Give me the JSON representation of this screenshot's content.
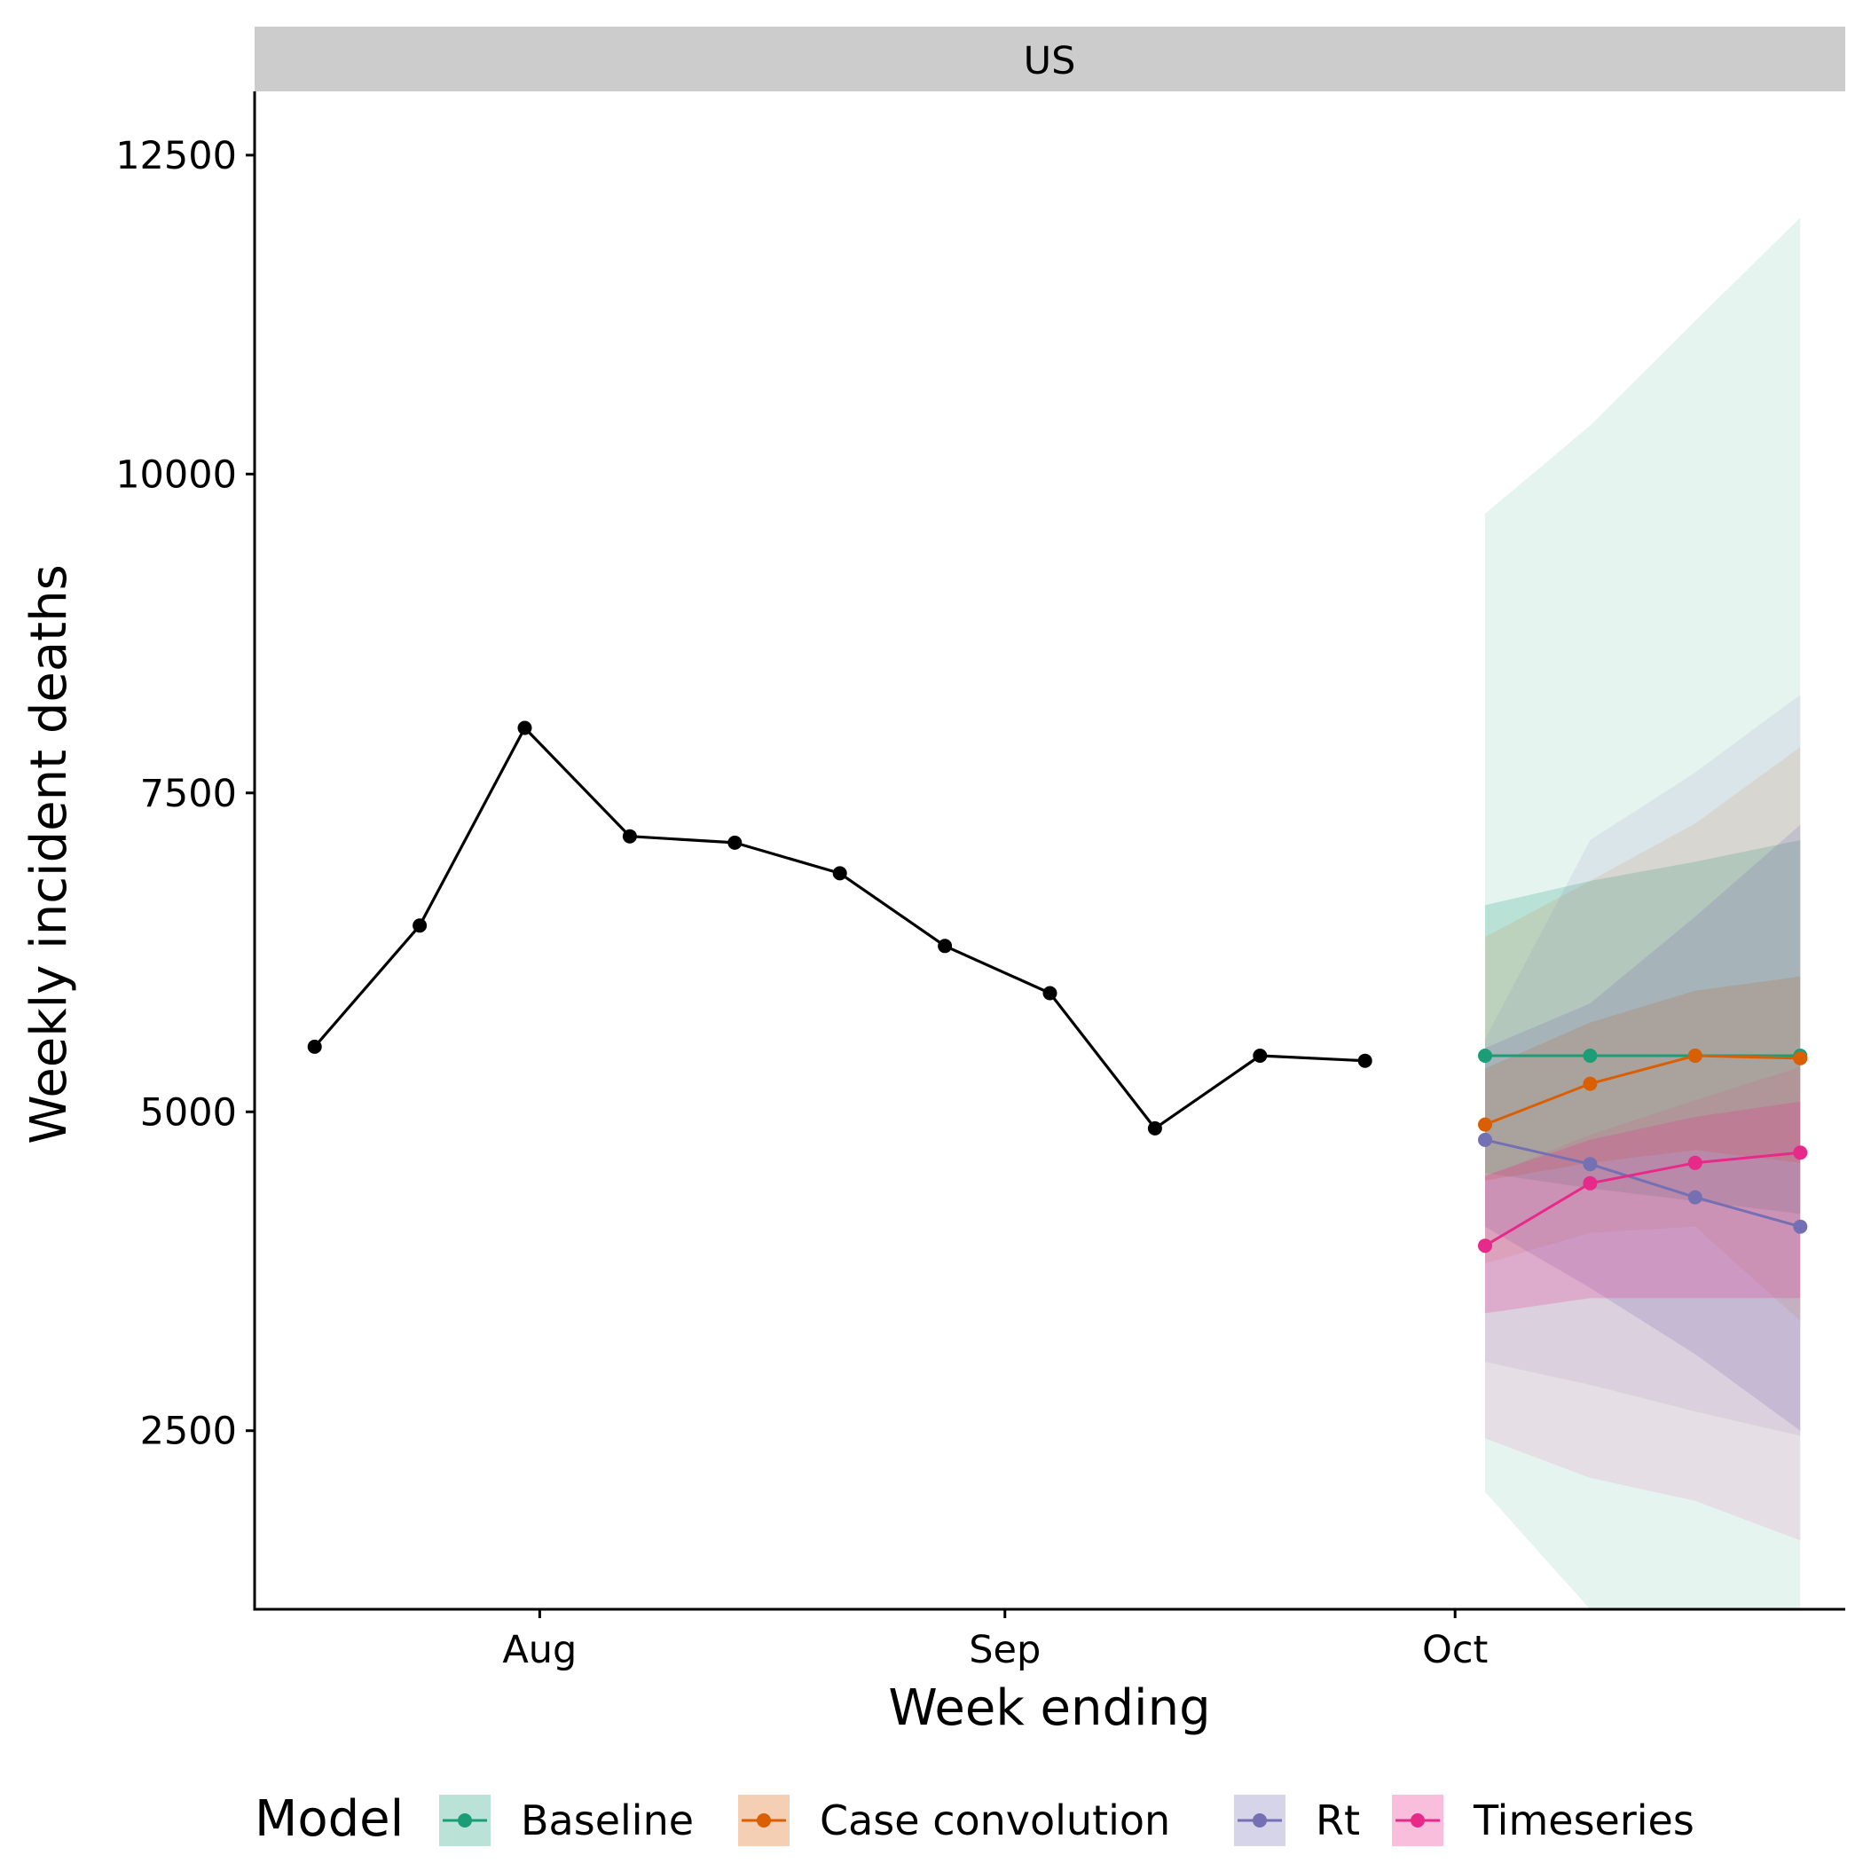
{
  "chart_data": {
    "type": "line",
    "panel_title": "US",
    "xlabel": "Week ending",
    "ylabel": "Weekly incident deaths",
    "x_ticks": [
      {
        "label": "Aug",
        "date": "2021-08-01"
      },
      {
        "label": "Sep",
        "date": "2021-09-01"
      },
      {
        "label": "Oct",
        "date": "2021-10-01"
      }
    ],
    "y_ticks": [
      2500,
      5000,
      7500,
      10000,
      12500
    ],
    "xlim": [
      "2021-07-13",
      "2021-10-27"
    ],
    "ylim": [
      1100,
      13000
    ],
    "grid": false,
    "legend": {
      "title": "Model",
      "position": "bottom"
    },
    "observed": {
      "color": "#000000",
      "points": [
        {
          "x": "2021-07-17",
          "y": 5510
        },
        {
          "x": "2021-07-24",
          "y": 6460
        },
        {
          "x": "2021-07-31",
          "y": 8010
        },
        {
          "x": "2021-08-07",
          "y": 7160
        },
        {
          "x": "2021-08-14",
          "y": 7110
        },
        {
          "x": "2021-08-21",
          "y": 6870
        },
        {
          "x": "2021-08-28",
          "y": 6300
        },
        {
          "x": "2021-09-04",
          "y": 5930
        },
        {
          "x": "2021-09-11",
          "y": 4870
        },
        {
          "x": "2021-09-18",
          "y": 5440
        },
        {
          "x": "2021-09-25",
          "y": 5400
        }
      ]
    },
    "forecast_dates": [
      "2021-10-03",
      "2021-10-10",
      "2021-10-17",
      "2021-10-24"
    ],
    "series": [
      {
        "name": "Baseline",
        "color": "#1b9e77",
        "median": [
          5440,
          5440,
          5440,
          5440
        ],
        "bands": [
          {
            "lower": [
              2020,
              1100,
              1100,
              1100
            ],
            "upper": [
              9690,
              10380,
              11200,
              12010
            ],
            "opacity": 0.11
          },
          {
            "lower": [
              4520,
              4400,
              4300,
              4200
            ],
            "upper": [
              6620,
              6810,
              6960,
              7130
            ],
            "opacity": 0.22
          }
        ]
      },
      {
        "name": "Case convolution",
        "color": "#d95f02",
        "median": [
          4900,
          5220,
          5440,
          5420
        ],
        "bands": [
          {
            "lower": [
              3810,
              4050,
              4100,
              3360
            ],
            "upper": [
              6370,
              6810,
              7260,
              7860
            ],
            "opacity": 0.11
          },
          {
            "lower": [
              4460,
              4600,
              4700,
              4600
            ],
            "upper": [
              5340,
              5700,
              5950,
              6060
            ],
            "opacity": 0.22
          }
        ]
      },
      {
        "name": "Rt",
        "color": "#7570b3",
        "median": [
          4780,
          4590,
          4330,
          4100
        ],
        "bands": [
          {
            "lower": [
              3040,
              2860,
              2650,
              2460
            ],
            "upper": [
              5570,
              7130,
              7660,
              8270
            ],
            "opacity": 0.11
          },
          {
            "lower": [
              4100,
              3620,
              3100,
              2500
            ],
            "upper": [
              5500,
              5850,
              6530,
              7250
            ],
            "opacity": 0.22
          }
        ]
      },
      {
        "name": "Timeseries",
        "color": "#e7298a",
        "median": [
          3950,
          4440,
          4600,
          4680
        ],
        "bands": [
          {
            "lower": [
              2440,
              2130,
              1950,
              1640
            ],
            "upper": [
              4490,
              4820,
              5090,
              5350
            ],
            "opacity": 0.11
          },
          {
            "lower": [
              3420,
              3540,
              3540,
              3540
            ],
            "upper": [
              4500,
              4780,
              4960,
              5080
            ],
            "opacity": 0.22
          }
        ]
      }
    ]
  }
}
